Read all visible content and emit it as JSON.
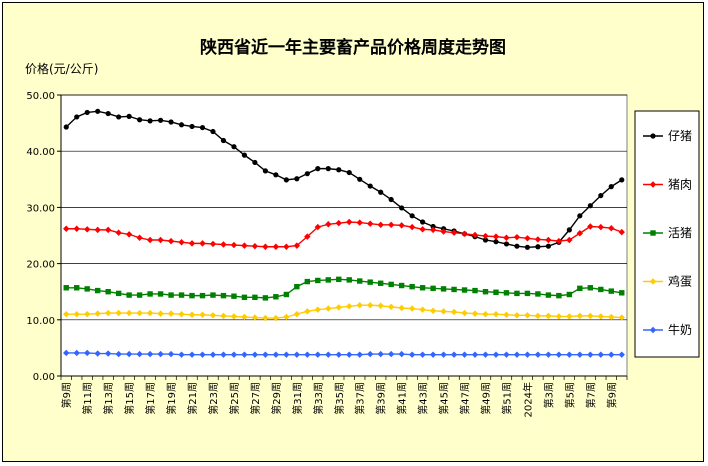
{
  "chart_data": {
    "type": "line",
    "title": "陕西省近一年主要畜产品价格周度走势图",
    "ylabel": "价格(元/公斤)",
    "ylim": [
      0,
      50
    ],
    "yticks": [
      "0.00",
      "10.00",
      "20.00",
      "30.00",
      "40.00",
      "50.00"
    ],
    "grid": "horizontal",
    "legend_position": "right",
    "x_labels": [
      "第9周",
      "第11周",
      "第13周",
      "第15周",
      "第17周",
      "第19周",
      "第21周",
      "第23周",
      "第25周",
      "第27周",
      "第29周",
      "第31周",
      "第33周",
      "第35周",
      "第37周",
      "第39周",
      "第41周",
      "第43周",
      "第45周",
      "第47周",
      "第49周",
      "第51周",
      "2024年",
      "第3周",
      "第5周",
      "第7周",
      "第9周"
    ],
    "series": [
      {
        "name": "仔猪",
        "color": "#000000",
        "marker": "circle",
        "values": [
          44.3,
          46.1,
          46.9,
          47.1,
          46.7,
          46.1,
          46.2,
          45.6,
          45.4,
          45.5,
          45.2,
          44.7,
          44.4,
          44.2,
          43.5,
          41.9,
          40.8,
          39.3,
          38.0,
          36.5,
          35.8,
          34.9,
          35.1,
          36.0,
          36.9,
          36.9,
          36.7,
          36.2,
          35.0,
          33.8,
          32.7,
          31.4,
          29.9,
          28.5,
          27.4,
          26.6,
          26.2,
          25.8,
          25.3,
          24.8,
          24.2,
          23.9,
          23.5,
          23.1,
          22.9,
          23.0,
          23.1,
          23.8,
          26.0,
          28.5,
          30.3,
          32.1,
          33.7,
          34.9
        ]
      },
      {
        "name": "猪肉",
        "color": "#ff0000",
        "marker": "diamond",
        "values": [
          26.2,
          26.2,
          26.1,
          26.0,
          26.0,
          25.5,
          25.2,
          24.6,
          24.2,
          24.2,
          24.0,
          23.8,
          23.6,
          23.6,
          23.5,
          23.4,
          23.3,
          23.2,
          23.1,
          23.0,
          23.0,
          23.0,
          23.2,
          24.8,
          26.5,
          27.0,
          27.2,
          27.4,
          27.3,
          27.1,
          26.9,
          26.9,
          26.8,
          26.5,
          26.1,
          26.0,
          25.7,
          25.5,
          25.3,
          25.1,
          24.9,
          24.8,
          24.6,
          24.7,
          24.5,
          24.3,
          24.2,
          24.0,
          24.2,
          25.4,
          26.6,
          26.5,
          26.3,
          25.6
        ]
      },
      {
        "name": "活猪",
        "color": "#008000",
        "marker": "square",
        "values": [
          15.7,
          15.7,
          15.5,
          15.2,
          15.0,
          14.7,
          14.4,
          14.4,
          14.6,
          14.6,
          14.4,
          14.4,
          14.3,
          14.3,
          14.4,
          14.3,
          14.2,
          14.0,
          14.0,
          13.9,
          14.1,
          14.5,
          15.9,
          16.8,
          17.0,
          17.1,
          17.2,
          17.1,
          16.9,
          16.7,
          16.5,
          16.3,
          16.1,
          15.9,
          15.7,
          15.6,
          15.5,
          15.4,
          15.3,
          15.2,
          15.0,
          14.9,
          14.8,
          14.7,
          14.7,
          14.6,
          14.4,
          14.3,
          14.5,
          15.6,
          15.7,
          15.4,
          15.1,
          14.8
        ]
      },
      {
        "name": "鸡蛋",
        "color": "#ffcc00",
        "marker": "diamond",
        "values": [
          11.0,
          11.0,
          11.0,
          11.1,
          11.2,
          11.2,
          11.2,
          11.2,
          11.2,
          11.1,
          11.1,
          11.0,
          10.9,
          10.9,
          10.8,
          10.7,
          10.6,
          10.5,
          10.4,
          10.3,
          10.3,
          10.5,
          11.0,
          11.5,
          11.8,
          12.0,
          12.2,
          12.4,
          12.6,
          12.6,
          12.5,
          12.3,
          12.1,
          12.0,
          11.8,
          11.6,
          11.5,
          11.4,
          11.2,
          11.1,
          11.0,
          11.0,
          10.9,
          10.8,
          10.8,
          10.7,
          10.7,
          10.6,
          10.6,
          10.7,
          10.7,
          10.6,
          10.5,
          10.4
        ]
      },
      {
        "name": "牛奶",
        "color": "#3366ff",
        "marker": "diamond",
        "values": [
          4.1,
          4.1,
          4.1,
          4.0,
          4.0,
          3.9,
          3.9,
          3.9,
          3.9,
          3.9,
          3.9,
          3.8,
          3.8,
          3.8,
          3.8,
          3.8,
          3.8,
          3.8,
          3.8,
          3.8,
          3.8,
          3.8,
          3.8,
          3.8,
          3.8,
          3.8,
          3.8,
          3.8,
          3.8,
          3.9,
          3.9,
          3.9,
          3.9,
          3.8,
          3.8,
          3.8,
          3.8,
          3.8,
          3.8,
          3.8,
          3.8,
          3.8,
          3.8,
          3.8,
          3.8,
          3.8,
          3.8,
          3.8,
          3.8,
          3.8,
          3.8,
          3.8,
          3.8,
          3.8
        ]
      }
    ]
  }
}
